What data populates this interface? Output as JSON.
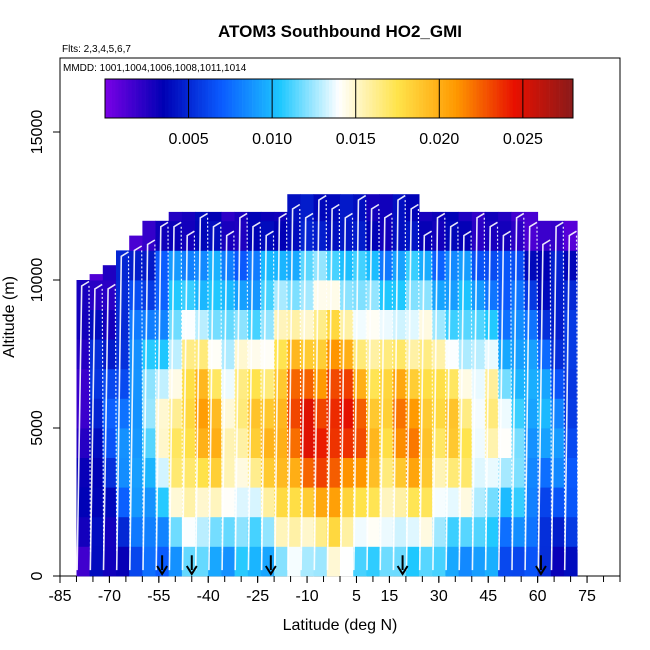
{
  "chart_data": {
    "type": "heatmap",
    "title": "ATOM3 Southbound HO2_GMI",
    "flights_label": "Flts: 2,3,4,5,6,7",
    "dates_label": "MMDD: 1001,1004,1006,1008,1011,1014",
    "xlabel": "Latitude (deg N)",
    "ylabel": "Altitude (m)",
    "xlim": [
      -85,
      85
    ],
    "ylim": [
      0,
      17500
    ],
    "x_ticks": [
      -85,
      -70,
      -55,
      -40,
      -25,
      -10,
      5,
      15,
      30,
      45,
      60,
      75
    ],
    "y_ticks": [
      0,
      5000,
      10000,
      15000
    ],
    "colorbar": {
      "min": 0.0,
      "max": 0.028,
      "ticks": [
        0.005,
        0.01,
        0.015,
        0.02,
        0.025
      ],
      "tick_labels": [
        "0.005",
        "0.010",
        "0.015",
        "0.020",
        "0.025"
      ],
      "colors": [
        "#7a00e6",
        "#0000b4",
        "#0a5cff",
        "#1ec8ff",
        "#ffffff",
        "#ffe34a",
        "#ff9900",
        "#e81000",
        "#8a1a1a"
      ]
    },
    "altitude_bins_m": [
      500,
      1500,
      2500,
      3500,
      4500,
      5500,
      6500,
      7500,
      8500,
      9500,
      10500,
      11500,
      12500
    ],
    "profile_latitudes": [
      -78,
      -74,
      -70,
      -66,
      -62,
      -58,
      -54,
      -50,
      -46,
      -42,
      -38,
      -34,
      -30,
      -26,
      -22,
      -18,
      -14,
      -10,
      -6,
      -2,
      2,
      6,
      10,
      14,
      18,
      22,
      26,
      30,
      34,
      38,
      42,
      46,
      50,
      54,
      58,
      62,
      66,
      70
    ],
    "profile_tops_m": [
      10000,
      10200,
      10500,
      11000,
      11500,
      12000,
      12000,
      12300,
      12300,
      12300,
      12300,
      12300,
      12300,
      12300,
      12300,
      12300,
      12900,
      12900,
      12900,
      12900,
      12900,
      12900,
      12900,
      12900,
      12900,
      12900,
      12300,
      12300,
      12300,
      12300,
      12300,
      12300,
      12300,
      12300,
      12300,
      12000,
      12000,
      12000
    ],
    "ho2_max_by_latitude": [
      0.003,
      0.005,
      0.006,
      0.008,
      0.01,
      0.012,
      0.014,
      0.017,
      0.019,
      0.02,
      0.019,
      0.016,
      0.017,
      0.018,
      0.019,
      0.021,
      0.023,
      0.024,
      0.024,
      0.025,
      0.024,
      0.022,
      0.02,
      0.019,
      0.021,
      0.021,
      0.02,
      0.018,
      0.018,
      0.017,
      0.015,
      0.016,
      0.013,
      0.012,
      0.01,
      0.009,
      0.008,
      0.007
    ],
    "ho2_peak_altitude_m": 5000,
    "flight_track_lines": "white",
    "surface_markers_latitude": [
      -54,
      -45,
      -21,
      19,
      61
    ]
  }
}
